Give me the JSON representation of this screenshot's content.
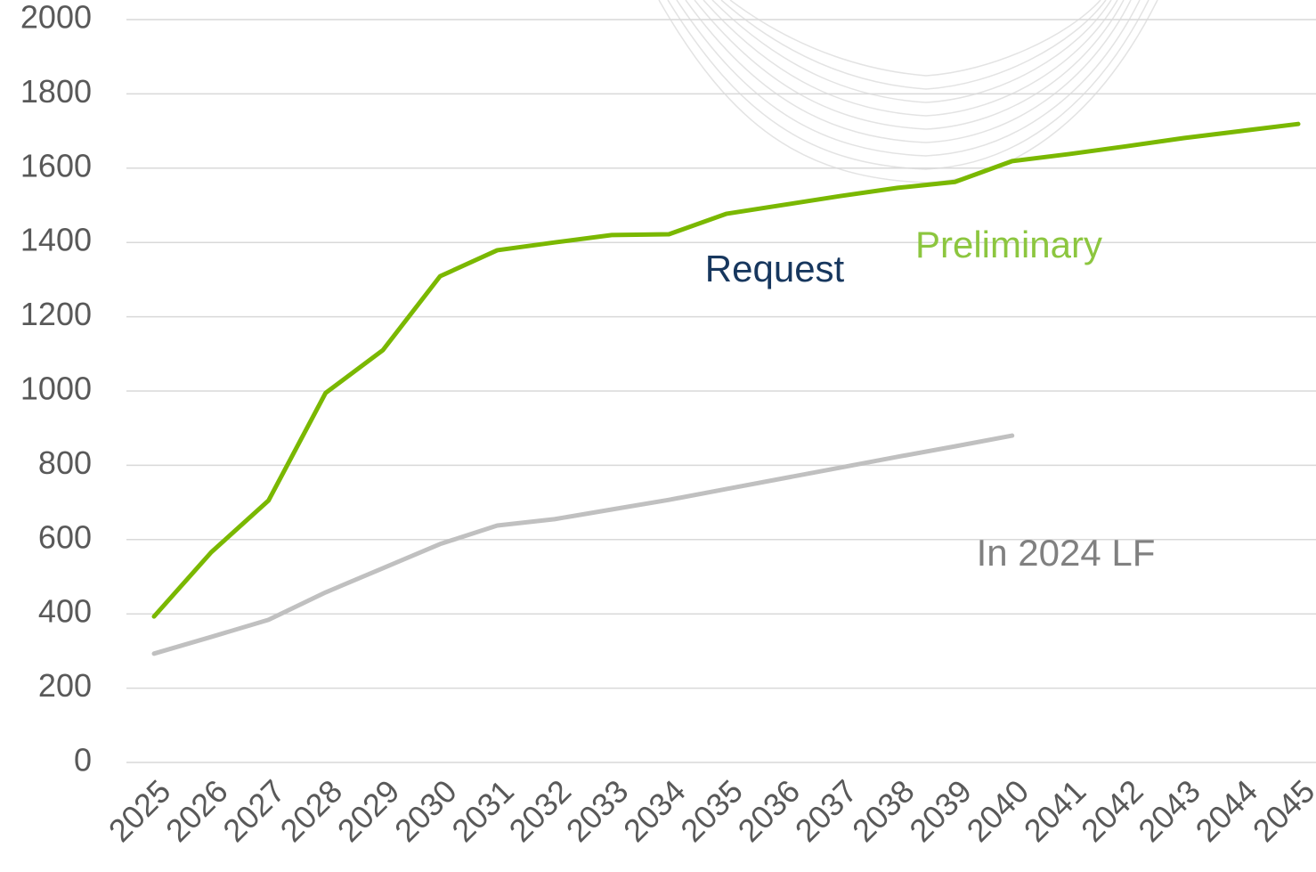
{
  "chart_data": {
    "type": "line",
    "categories": [
      "2025",
      "2026",
      "2027",
      "2028",
      "2029",
      "2030",
      "2031",
      "2032",
      "2033",
      "2034",
      "2035",
      "2036",
      "2037",
      "2038",
      "2039",
      "2040",
      "2041",
      "2042",
      "2043",
      "2044",
      "2045"
    ],
    "series": [
      {
        "color": "#7ab800",
        "values": [
          393,
          566,
          705,
          995,
          1110,
          1309,
          1379,
          1400,
          1420,
          1422,
          1477,
          1501,
          1525,
          1547,
          1563,
          1619,
          1638,
          1659,
          1681,
          1700,
          1719
        ]
      },
      {
        "color": "#c0c0c0",
        "values": [
          293,
          338,
          384,
          458,
          523,
          588,
          638,
          655,
          681,
          707,
          736,
          765,
          794,
          823,
          851,
          880,
          null,
          null,
          null,
          null,
          null
        ]
      }
    ],
    "ylim": [
      0,
      2000
    ],
    "yticks": [
      0,
      200,
      400,
      600,
      800,
      1000,
      1200,
      1400,
      1600,
      1800,
      2000
    ],
    "grid": true,
    "annotations": [
      {
        "text": "Request",
        "color": "#17375e"
      },
      {
        "text": "Preliminary",
        "color": "#8cc63f"
      },
      {
        "text": "In 2024 LF",
        "color": "#808080"
      }
    ]
  }
}
